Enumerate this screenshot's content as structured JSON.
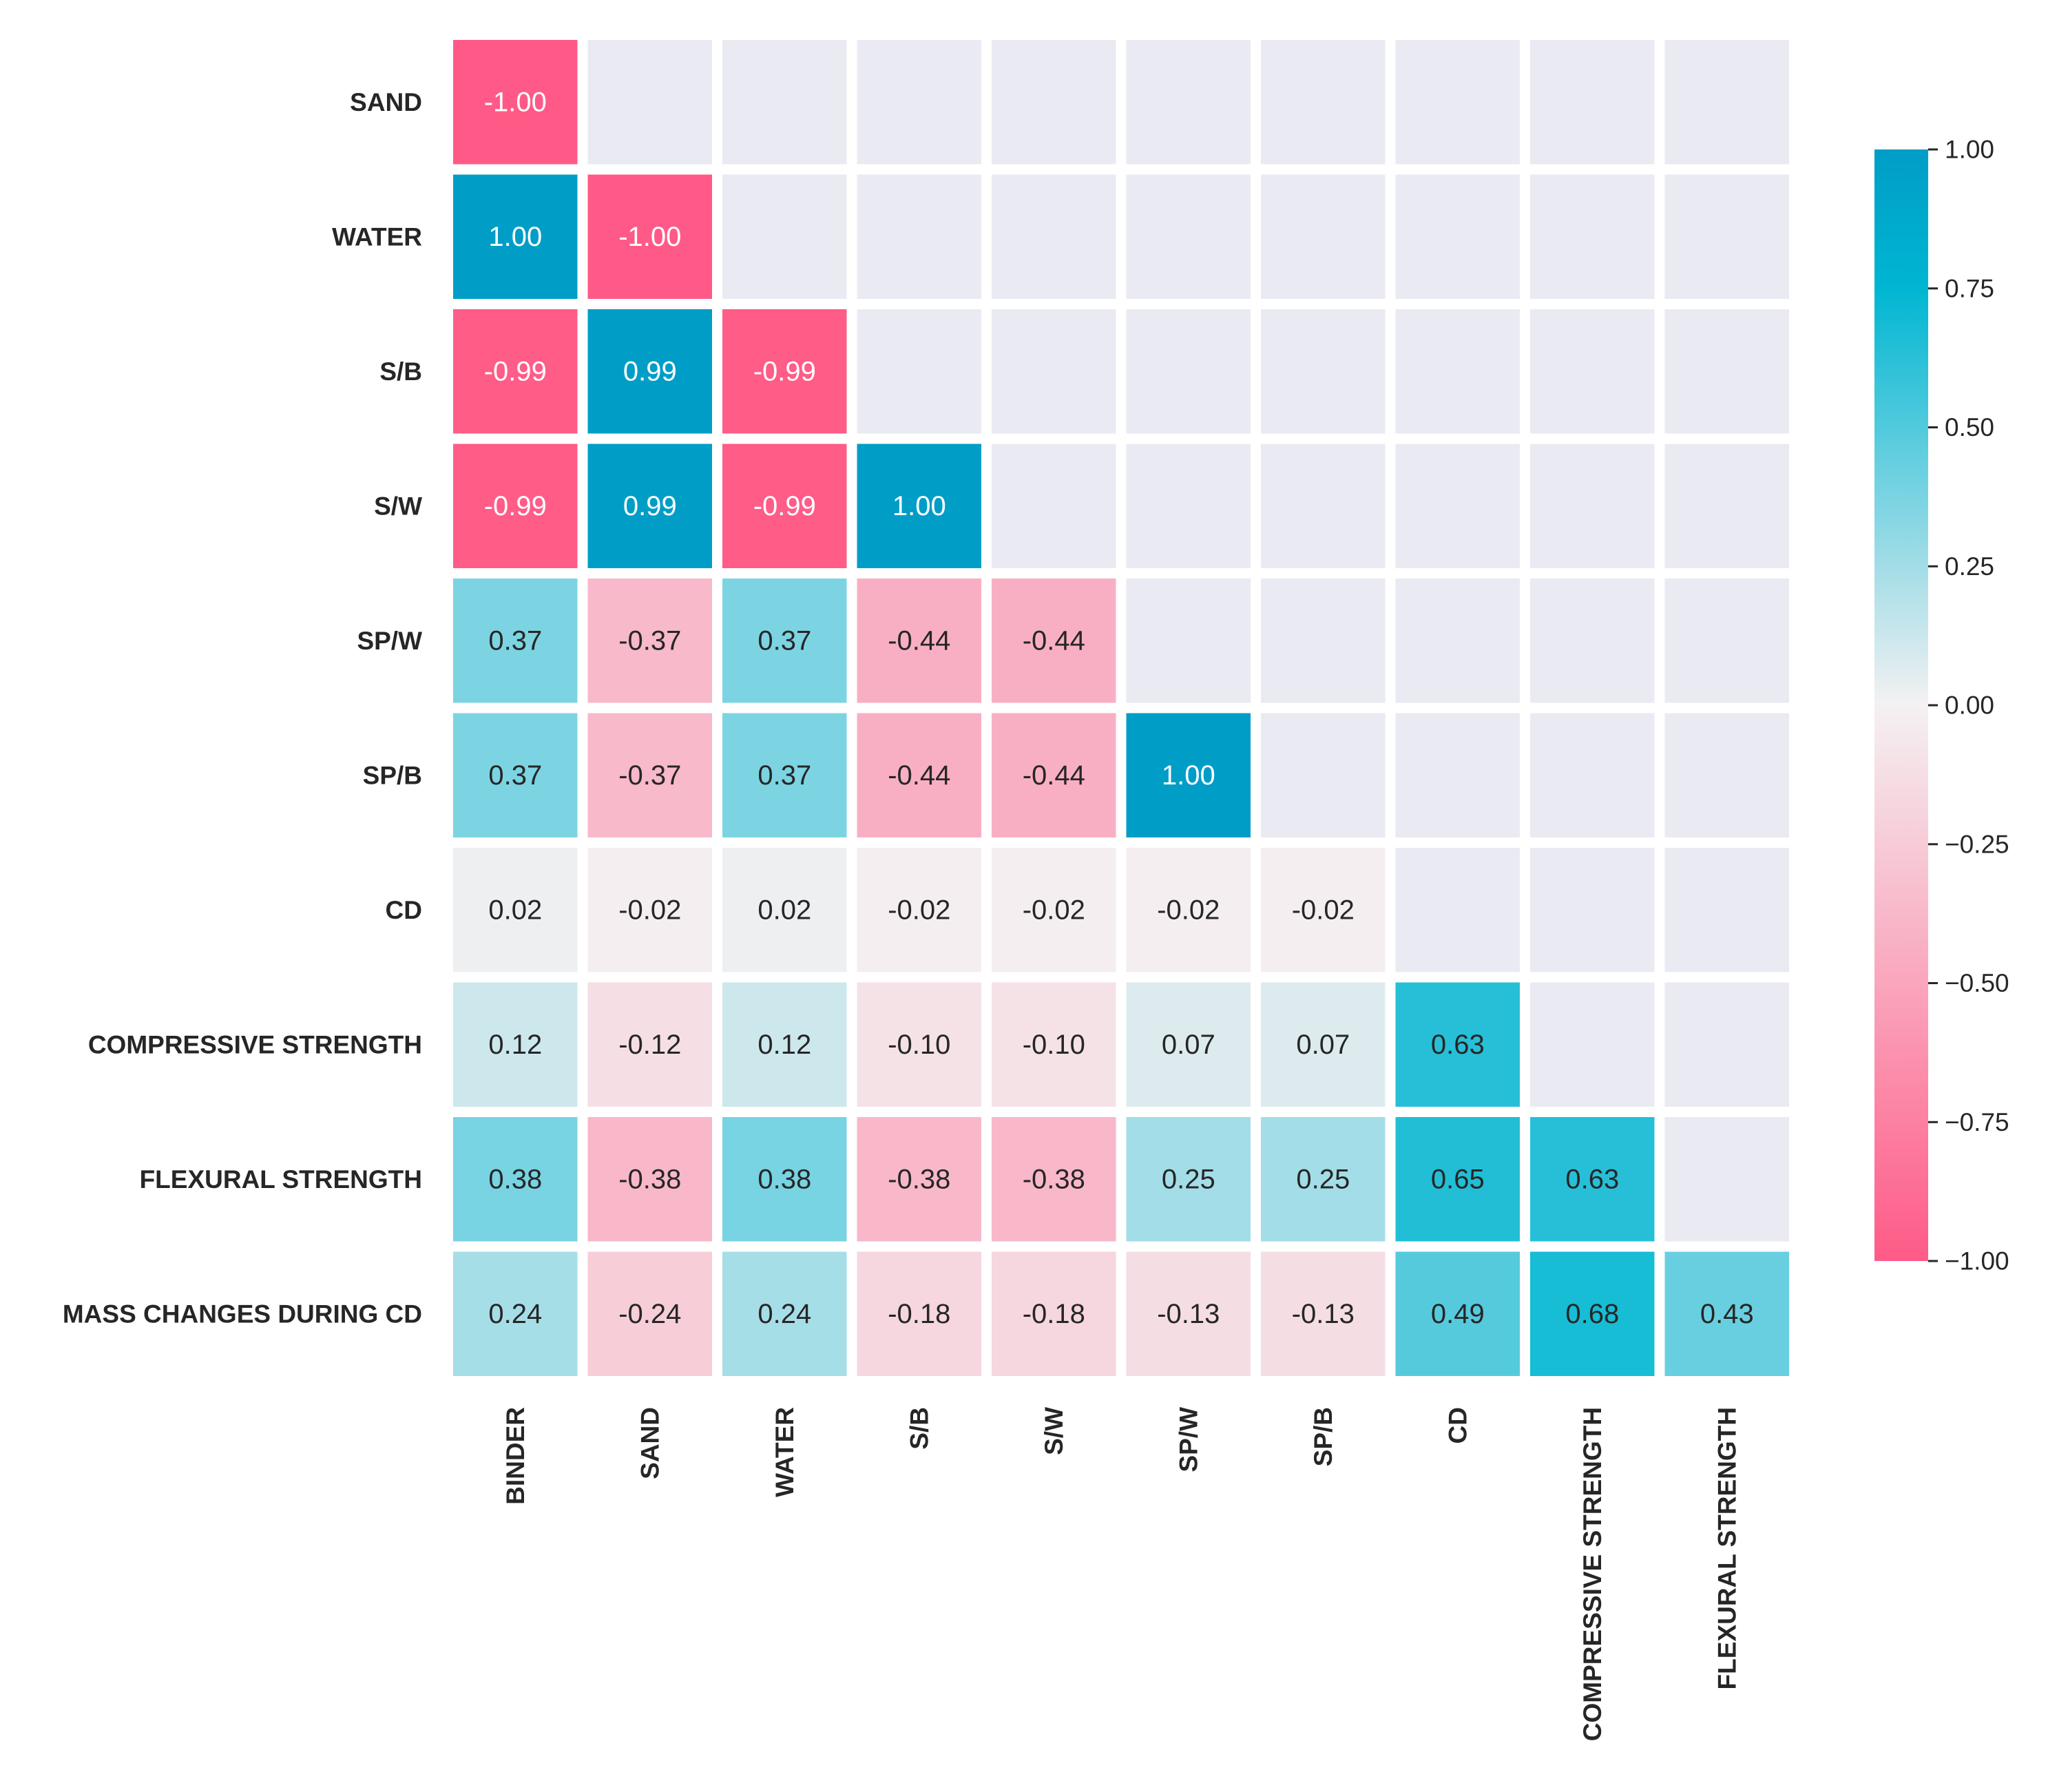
{
  "chart_data": {
    "type": "heatmap",
    "title": "",
    "rows": [
      "SAND",
      "WATER",
      "S/B",
      "S/W",
      "SP/W",
      "SP/B",
      "CD",
      "COMPRESSIVE STRENGTH",
      "FLEXURAL STRENGTH",
      "MASS CHANGES DURING CD"
    ],
    "columns": [
      "BINDER",
      "SAND",
      "WATER",
      "S/B",
      "S/W",
      "SP/W",
      "SP/B",
      "CD",
      "COMPRESSIVE STRENGTH",
      "FLEXURAL STRENGTH"
    ],
    "values": [
      [
        -1.0,
        null,
        null,
        null,
        null,
        null,
        null,
        null,
        null,
        null
      ],
      [
        1.0,
        -1.0,
        null,
        null,
        null,
        null,
        null,
        null,
        null,
        null
      ],
      [
        -0.99,
        0.99,
        -0.99,
        null,
        null,
        null,
        null,
        null,
        null,
        null
      ],
      [
        -0.99,
        0.99,
        -0.99,
        1.0,
        null,
        null,
        null,
        null,
        null,
        null
      ],
      [
        0.37,
        -0.37,
        0.37,
        -0.44,
        -0.44,
        null,
        null,
        null,
        null,
        null
      ],
      [
        0.37,
        -0.37,
        0.37,
        -0.44,
        -0.44,
        1.0,
        null,
        null,
        null,
        null
      ],
      [
        0.02,
        -0.02,
        0.02,
        -0.02,
        -0.02,
        -0.02,
        -0.02,
        null,
        null,
        null
      ],
      [
        0.12,
        -0.12,
        0.12,
        -0.1,
        -0.1,
        0.07,
        0.07,
        0.63,
        null,
        null
      ],
      [
        0.38,
        -0.38,
        0.38,
        -0.38,
        -0.38,
        0.25,
        0.25,
        0.65,
        0.63,
        null
      ],
      [
        0.24,
        -0.24,
        0.24,
        -0.18,
        -0.18,
        -0.13,
        -0.13,
        0.49,
        0.68,
        0.43
      ]
    ],
    "labels": [
      [
        "-1.00",
        "",
        "",
        "",
        "",
        "",
        "",
        "",
        "",
        ""
      ],
      [
        "1.00",
        "-1.00",
        "",
        "",
        "",
        "",
        "",
        "",
        "",
        ""
      ],
      [
        "-0.99",
        "0.99",
        "-0.99",
        "",
        "",
        "",
        "",
        "",
        "",
        ""
      ],
      [
        "-0.99",
        "0.99",
        "-0.99",
        "1.00",
        "",
        "",
        "",
        "",
        "",
        ""
      ],
      [
        "0.37",
        "-0.37",
        "0.37",
        "-0.44",
        "-0.44",
        "",
        "",
        "",
        "",
        ""
      ],
      [
        "0.37",
        "-0.37",
        "0.37",
        "-0.44",
        "-0.44",
        "1.00",
        "",
        "",
        "",
        ""
      ],
      [
        "0.02",
        "-0.02",
        "0.02",
        "-0.02",
        "-0.02",
        "-0.02",
        "-0.02",
        "",
        "",
        ""
      ],
      [
        "0.12",
        "-0.12",
        "0.12",
        "-0.10",
        "-0.10",
        "0.07",
        "0.07",
        "0.63",
        "",
        ""
      ],
      [
        "0.38",
        "-0.38",
        "0.38",
        "-0.38",
        "-0.38",
        "0.25",
        "0.25",
        "0.65",
        "0.63",
        ""
      ],
      [
        "0.24",
        "-0.24",
        "0.24",
        "-0.18",
        "-0.18",
        "-0.13",
        "-0.13",
        "0.49",
        "0.68",
        "0.43"
      ]
    ],
    "colorbar": {
      "range": [
        -1.0,
        1.0
      ],
      "ticks": [
        1.0,
        0.75,
        0.5,
        0.25,
        0.0,
        -0.25,
        -0.5,
        -0.75,
        -1.0
      ],
      "tick_labels": [
        "1.00",
        "0.75",
        "0.50",
        "0.25",
        "0.00",
        "−0.25",
        "−0.50",
        "−0.75",
        "−1.00"
      ],
      "placement": "right"
    },
    "colors": {
      "negative_end": "#ff5a87",
      "neutral": "#f4f1f2",
      "positive_mid": "#00b6d2",
      "positive_end": "#009dc7",
      "masked_cell": "#eaebf2",
      "text_dark": "#262626",
      "text_light": "#ffffff"
    }
  }
}
